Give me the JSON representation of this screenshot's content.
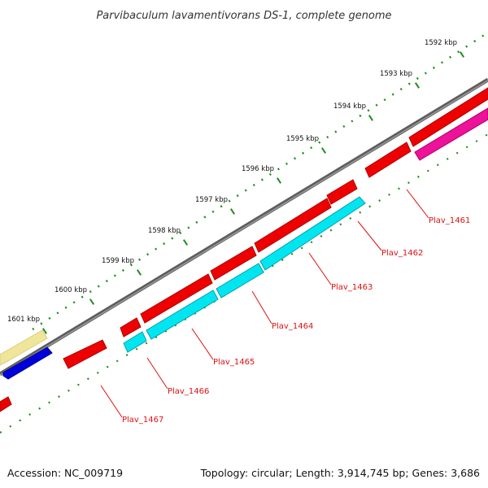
{
  "title": "Parvibaculum lavamentivorans DS-1, complete genome",
  "footer": {
    "accession": "Accession: NC_009719",
    "summary": "Topology: circular; Length: 3,914,745 bp; Genes: 3,686"
  },
  "ticks": [
    "1592 kbp",
    "1593 kbp",
    "1594 kbp",
    "1595 kbp",
    "1596 kbp",
    "1597 kbp",
    "1598 kbp",
    "1599 kbp",
    "1600 kbp",
    "1601 kbp"
  ],
  "genes": [
    {
      "label": "Plav_1461",
      "color": "#dd1111"
    },
    {
      "label": "Plav_1462",
      "color": "#dd1111"
    },
    {
      "label": "Plav_1463",
      "color": "#dd1111"
    },
    {
      "label": "Plav_1464",
      "color": "#dd1111"
    },
    {
      "label": "Plav_1465",
      "color": "#dd1111"
    },
    {
      "label": "Plav_1466",
      "color": "#dd1111"
    },
    {
      "label": "Plav_1467",
      "color": "#dd1111"
    }
  ],
  "colors": {
    "cds_forward": "#ee0000",
    "cds_reverse_cyan": "#00e6f0",
    "cds_reverse_magenta": "#ee1199",
    "cds_blue": "#0000dd",
    "cds_yellow": "#f0e69a",
    "backbone": "#777777",
    "ticks": "#228b22"
  }
}
